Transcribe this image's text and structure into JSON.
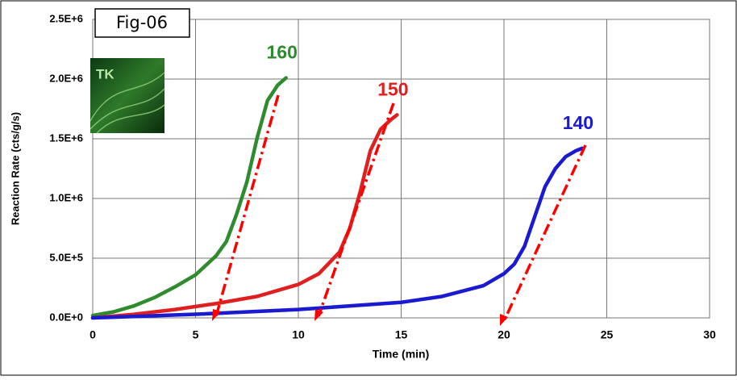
{
  "chart_data": {
    "type": "line",
    "annotation": "Fig-06",
    "logo_text": "TK",
    "x_label": "Time (min)",
    "y_label": "Reaction Rate (cts/g/s)",
    "xlim": [
      0,
      30
    ],
    "xticks": [
      0,
      5,
      10,
      15,
      20,
      25,
      30
    ],
    "ylim": [
      0,
      2500000
    ],
    "yticks": [
      {
        "value": 0,
        "label": "0.0E+0"
      },
      {
        "value": 500000,
        "label": "5.0E+5"
      },
      {
        "value": 1000000,
        "label": "1.0E+6"
      },
      {
        "value": 1500000,
        "label": "1.5E+6"
      },
      {
        "value": 2000000,
        "label": "2.0E+6"
      },
      {
        "value": 2500000,
        "label": "2.5E+6"
      }
    ],
    "grid": true,
    "series": [
      {
        "name": "160",
        "color": "#2e8b2e",
        "x": [
          0,
          1,
          2,
          3,
          4,
          5,
          6,
          6.5,
          7,
          7.5,
          8,
          8.5,
          9,
          9.4
        ],
        "values": [
          20000,
          50000,
          100000,
          170000,
          260000,
          360000,
          520000,
          640000,
          870000,
          1140000,
          1510000,
          1820000,
          1950000,
          2010000
        ]
      },
      {
        "name": "150",
        "color": "#e02020",
        "x": [
          0,
          2,
          4,
          6,
          8,
          10,
          11,
          12,
          12.5,
          13,
          13.5,
          14,
          14.5,
          14.8
        ],
        "values": [
          0,
          30000,
          70000,
          120000,
          180000,
          280000,
          370000,
          550000,
          750000,
          1050000,
          1400000,
          1580000,
          1660000,
          1700000
        ]
      },
      {
        "name": "140",
        "color": "#1a1ad0",
        "x": [
          0,
          5,
          10,
          15,
          17,
          19,
          20,
          20.5,
          21,
          21.5,
          22,
          22.5,
          23,
          23.5,
          23.8
        ],
        "values": [
          0,
          30000,
          70000,
          130000,
          180000,
          270000,
          370000,
          450000,
          600000,
          850000,
          1100000,
          1250000,
          1350000,
          1400000,
          1420000
        ]
      }
    ]
  }
}
